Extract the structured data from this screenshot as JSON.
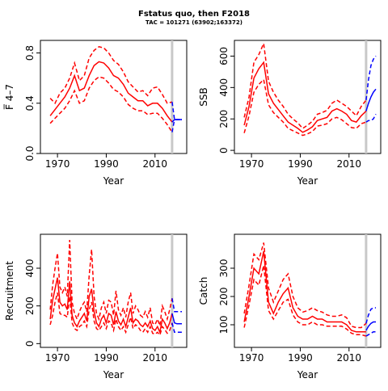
{
  "title": "Fstatus quo, then F2018",
  "subtitle": "TAC = 101271 (63902;163372)",
  "colors": {
    "historic": "#ff0000",
    "projection": "#0000ff",
    "marker": "#c8c8c8"
  },
  "chart_data": [
    {
      "type": "line",
      "id": "fbar",
      "ylabel": "F̅ 4–7",
      "xlabel": "Year",
      "xlim": [
        1963,
        2023
      ],
      "ylim": [
        0,
        0.9
      ],
      "xticks": [
        "1970",
        "1990",
        "2010"
      ],
      "yticks": [
        "0.0",
        "0.4",
        "0.8"
      ],
      "vline": 2017,
      "historic": {
        "x": [
          1967,
          1969,
          1971,
          1973,
          1975,
          1977,
          1979,
          1981,
          1983,
          1985,
          1987,
          1989,
          1991,
          1993,
          1995,
          1997,
          1999,
          2001,
          2003,
          2005,
          2007,
          2009,
          2011,
          2013,
          2015,
          2017
        ],
        "median": [
          0.3,
          0.35,
          0.4,
          0.45,
          0.52,
          0.62,
          0.5,
          0.52,
          0.62,
          0.7,
          0.73,
          0.72,
          0.68,
          0.62,
          0.6,
          0.55,
          0.48,
          0.45,
          0.42,
          0.42,
          0.38,
          0.4,
          0.4,
          0.36,
          0.3,
          0.25
        ],
        "lower": [
          0.24,
          0.28,
          0.32,
          0.36,
          0.42,
          0.5,
          0.4,
          0.42,
          0.52,
          0.58,
          0.61,
          0.6,
          0.56,
          0.51,
          0.49,
          0.45,
          0.39,
          0.36,
          0.34,
          0.34,
          0.31,
          0.32,
          0.32,
          0.28,
          0.23,
          0.17
        ],
        "upper": [
          0.44,
          0.4,
          0.48,
          0.52,
          0.6,
          0.72,
          0.58,
          0.62,
          0.76,
          0.82,
          0.85,
          0.84,
          0.8,
          0.74,
          0.71,
          0.65,
          0.57,
          0.53,
          0.49,
          0.5,
          0.46,
          0.52,
          0.53,
          0.47,
          0.4,
          0.41
        ]
      },
      "projection": {
        "x": [
          2017,
          2018,
          2019,
          2020,
          2021
        ],
        "median": [
          0.25,
          0.27,
          0.27,
          0.27,
          0.27
        ],
        "lower": [
          0.17,
          0.27,
          0.27,
          0.27,
          0.27
        ],
        "upper": [
          0.41,
          0.27,
          0.27,
          0.27,
          0.27
        ]
      }
    },
    {
      "type": "line",
      "id": "ssb",
      "ylabel": "SSB",
      "xlabel": "Year",
      "xlim": [
        1963,
        2023
      ],
      "ylim": [
        -20,
        700
      ],
      "xticks": [
        "1970",
        "1990",
        "2010"
      ],
      "yticks": [
        "0",
        "200",
        "400",
        "600"
      ],
      "vline": 2017,
      "historic": {
        "x": [
          1967,
          1969,
          1971,
          1973,
          1975,
          1977,
          1979,
          1981,
          1983,
          1985,
          1987,
          1989,
          1991,
          1993,
          1995,
          1997,
          1999,
          2001,
          2003,
          2005,
          2007,
          2009,
          2011,
          2013,
          2015,
          2017
        ],
        "median": [
          160,
          280,
          460,
          520,
          560,
          360,
          300,
          260,
          220,
          180,
          160,
          140,
          115,
          130,
          150,
          190,
          200,
          210,
          250,
          265,
          250,
          230,
          190,
          180,
          220,
          250
        ],
        "lower": [
          110,
          220,
          370,
          420,
          450,
          290,
          240,
          210,
          180,
          140,
          125,
          110,
          95,
          105,
          120,
          155,
          160,
          170,
          200,
          210,
          195,
          170,
          145,
          140,
          170,
          180
        ],
        "upper": [
          210,
          340,
          560,
          610,
          680,
          440,
          370,
          320,
          280,
          230,
          200,
          175,
          140,
          160,
          185,
          230,
          240,
          255,
          300,
          320,
          300,
          280,
          250,
          220,
          280,
          320
        ]
      },
      "projection": {
        "x": [
          2017,
          2018,
          2019,
          2020,
          2021
        ],
        "median": [
          250,
          300,
          340,
          370,
          390
        ],
        "lower": [
          180,
          190,
          190,
          200,
          230
        ],
        "upper": [
          320,
          450,
          540,
          580,
          600
        ]
      }
    },
    {
      "type": "line",
      "id": "recruitment",
      "ylabel": "Recruitment",
      "xlabel": "Year",
      "xlim": [
        1963,
        2023
      ],
      "ylim": [
        -20,
        580
      ],
      "xticks": [
        "1970",
        "1990",
        "2010"
      ],
      "yticks": [
        "0",
        "200",
        "400"
      ],
      "vline": 2017,
      "historic": {
        "x": [
          1967,
          1968,
          1969,
          1970,
          1971,
          1972,
          1973,
          1974,
          1975,
          1976,
          1977,
          1978,
          1979,
          1980,
          1981,
          1982,
          1983,
          1984,
          1985,
          1986,
          1987,
          1988,
          1989,
          1990,
          1991,
          1992,
          1993,
          1994,
          1995,
          1996,
          1997,
          1998,
          1999,
          2000,
          2001,
          2002,
          2003,
          2004,
          2005,
          2006,
          2007,
          2008,
          2009,
          2010,
          2011,
          2012,
          2013,
          2014,
          2015,
          2016,
          2017
        ],
        "median": [
          130,
          230,
          290,
          350,
          220,
          200,
          210,
          180,
          330,
          150,
          110,
          90,
          120,
          140,
          160,
          120,
          250,
          290,
          170,
          110,
          90,
          130,
          150,
          110,
          160,
          150,
          100,
          170,
          120,
          100,
          130,
          90,
          140,
          190,
          110,
          130,
          120,
          100,
          90,
          110,
          90,
          120,
          80,
          70,
          90,
          60,
          130,
          110,
          80,
          110,
          160
        ],
        "lower": [
          100,
          150,
          220,
          270,
          160,
          150,
          150,
          140,
          250,
          110,
          80,
          70,
          90,
          100,
          120,
          90,
          180,
          220,
          120,
          80,
          70,
          90,
          110,
          80,
          120,
          110,
          70,
          130,
          90,
          70,
          90,
          60,
          100,
          140,
          80,
          100,
          90,
          70,
          60,
          80,
          60,
          90,
          55,
          50,
          60,
          45,
          90,
          75,
          55,
          70,
          110
        ],
        "upper": [
          180,
          310,
          400,
          480,
          300,
          270,
          300,
          250,
          550,
          220,
          160,
          130,
          170,
          200,
          220,
          170,
          360,
          500,
          250,
          160,
          130,
          190,
          220,
          160,
          230,
          220,
          150,
          280,
          180,
          150,
          190,
          140,
          220,
          270,
          160,
          200,
          180,
          150,
          140,
          170,
          140,
          190,
          110,
          100,
          130,
          95,
          200,
          170,
          130,
          180,
          240
        ]
      },
      "projection": {
        "x": [
          2017,
          2018,
          2019,
          2020,
          2021
        ],
        "median": [
          160,
          110,
          105,
          105,
          105
        ],
        "lower": [
          110,
          60,
          60,
          60,
          60
        ],
        "upper": [
          240,
          170,
          170,
          170,
          170
        ]
      }
    },
    {
      "type": "line",
      "id": "catch",
      "ylabel": "Catch",
      "xlabel": "Year",
      "xlim": [
        1963,
        2023
      ],
      "ylim": [
        20,
        420
      ],
      "xticks": [
        "1970",
        "1990",
        "2010"
      ],
      "yticks": [
        "100",
        "200",
        "300"
      ],
      "vline": 2017,
      "historic": {
        "x": [
          1967,
          1969,
          1971,
          1973,
          1975,
          1977,
          1979,
          1981,
          1983,
          1985,
          1987,
          1989,
          1991,
          1993,
          1995,
          1997,
          1999,
          2001,
          2003,
          2005,
          2007,
          2009,
          2011,
          2013,
          2015,
          2017
        ],
        "median": [
          110,
          200,
          300,
          280,
          360,
          180,
          140,
          180,
          210,
          230,
          160,
          130,
          120,
          120,
          130,
          120,
          120,
          110,
          110,
          110,
          110,
          100,
          80,
          75,
          75,
          75
        ],
        "lower": [
          90,
          170,
          260,
          240,
          310,
          150,
          120,
          150,
          180,
          190,
          135,
          110,
          100,
          100,
          110,
          100,
          100,
          95,
          95,
          95,
          95,
          85,
          70,
          65,
          65,
          60
        ],
        "upper": [
          140,
          240,
          350,
          330,
          390,
          230,
          180,
          220,
          260,
          280,
          200,
          160,
          145,
          150,
          160,
          150,
          145,
          135,
          130,
          130,
          135,
          125,
          95,
          90,
          90,
          105
        ]
      },
      "projection": {
        "x": [
          2017,
          2018,
          2019,
          2020,
          2021
        ],
        "median": [
          80,
          95,
          105,
          110,
          110
        ],
        "lower": [
          60,
          65,
          70,
          75,
          75
        ],
        "upper": [
          105,
          135,
          155,
          160,
          160
        ]
      }
    }
  ]
}
